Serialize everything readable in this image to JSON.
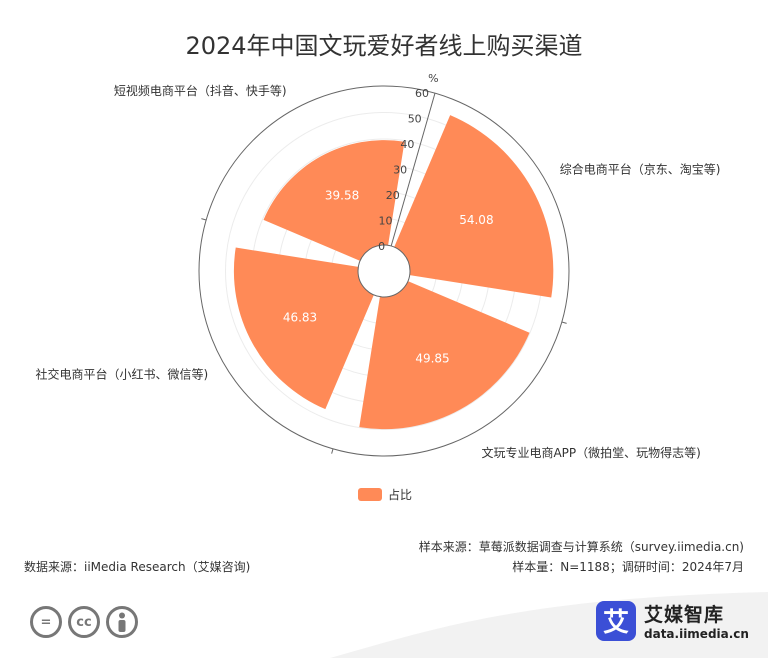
{
  "chart_data": {
    "type": "polar-bar",
    "title": "2024年中国文玩爱好者线上购买渠道",
    "unit": "%",
    "series": [
      {
        "name": "占比",
        "values": [
          54.08,
          49.85,
          46.83,
          39.58
        ]
      }
    ],
    "categories": [
      "综合电商平台（京东、淘宝等)",
      "文玩专业电商APP（微拍堂、玩物得志等)",
      "社交电商平台（小红书、微信等)",
      "短视频电商平台（抖音、快手等)"
    ],
    "radial_ticks": [
      "0",
      "10",
      "20",
      "30",
      "40",
      "50",
      "60"
    ],
    "rlim": [
      0,
      60
    ],
    "color": "#ff8a57",
    "legend_position": "bottom-center"
  },
  "footer": {
    "data_source": "数据来源：iiMedia Research（艾媒咨询)",
    "sample_source": "样本来源：草莓派数据调查与计算系统（survey.iimedia.cn)",
    "sample_info": "样本量：N=1188；调研时间：2024年7月",
    "brand_name": "艾媒智库",
    "brand_url": "data.iimedia.cn",
    "brand_mark": "艾",
    "cc_icons": [
      "=",
      "cc",
      "person"
    ]
  }
}
